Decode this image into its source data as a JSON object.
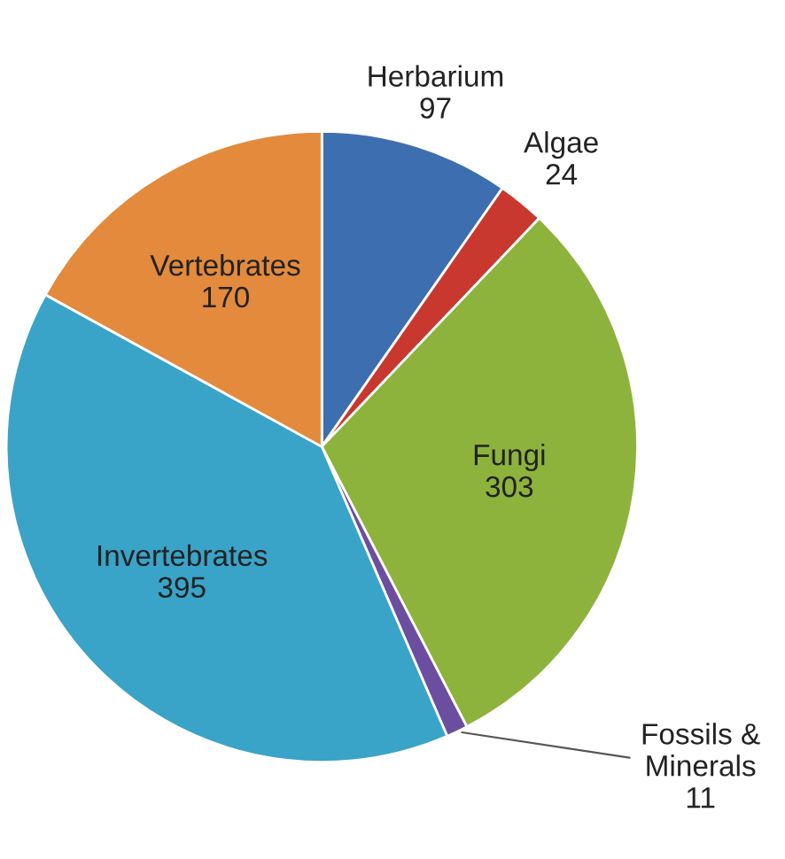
{
  "chart_data": {
    "type": "pie",
    "categories": [
      "Herbarium",
      "Algae",
      "Fungi",
      "Fossils & Minerals",
      "Invertebrates",
      "Vertebrates"
    ],
    "values": [
      97,
      24,
      303,
      11,
      395,
      170
    ],
    "colors": [
      "#3d6fb0",
      "#c8382f",
      "#8db33d",
      "#6c4ea0",
      "#3aa3c8",
      "#e38a3c"
    ],
    "data_labels": true
  }
}
